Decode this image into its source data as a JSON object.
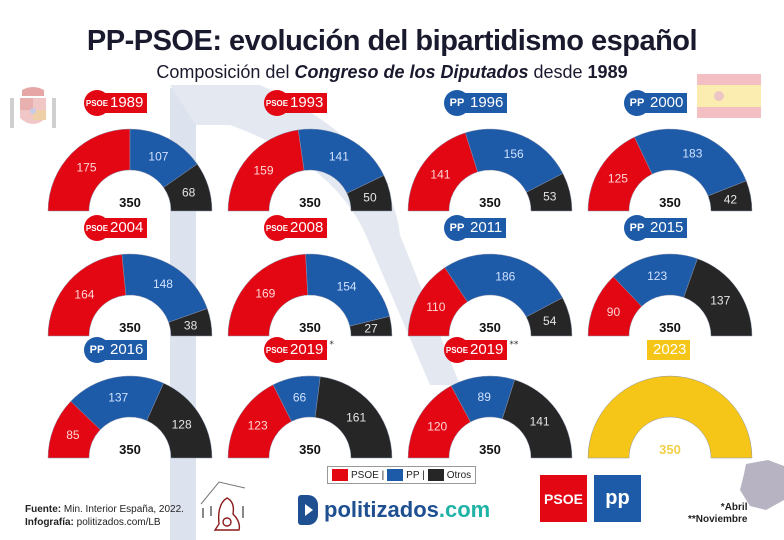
{
  "header": {
    "title": "PP-PSOE: evolución del bipartidismo español",
    "subtitle_prefix": "Composición del ",
    "subtitle_italic": "Congreso de los Diputados",
    "subtitle_mid": " desde ",
    "subtitle_year": "1989"
  },
  "colors": {
    "psoe": "#e30613",
    "pp": "#1d5aa8",
    "otros": "#262626",
    "pending": "#f5c518"
  },
  "chart_data": {
    "type": "pie",
    "title": "PP-PSOE: evolución del bipartidismo español",
    "subtitle": "Composición del Congreso de los Diputados desde 1989",
    "total_seats": 350,
    "legend": [
      "PSOE",
      "PP",
      "Otros"
    ],
    "legend_position": "bottom-center",
    "elections": [
      {
        "year": "1989",
        "winner": "PSOE",
        "mark": "",
        "psoe": 175,
        "pp": 107,
        "otros": 68,
        "total": 350
      },
      {
        "year": "1993",
        "winner": "PSOE",
        "mark": "",
        "psoe": 159,
        "pp": 141,
        "otros": 50,
        "total": 350
      },
      {
        "year": "1996",
        "winner": "PP",
        "mark": "",
        "psoe": 141,
        "pp": 156,
        "otros": 53,
        "total": 350
      },
      {
        "year": "2000",
        "winner": "PP",
        "mark": "",
        "psoe": 125,
        "pp": 183,
        "otros": 42,
        "total": 350
      },
      {
        "year": "2004",
        "winner": "PSOE",
        "mark": "",
        "psoe": 164,
        "pp": 148,
        "otros": 38,
        "total": 350
      },
      {
        "year": "2008",
        "winner": "PSOE",
        "mark": "",
        "psoe": 169,
        "pp": 154,
        "otros": 27,
        "total": 350
      },
      {
        "year": "2011",
        "winner": "PP",
        "mark": "",
        "psoe": 110,
        "pp": 186,
        "otros": 54,
        "total": 350
      },
      {
        "year": "2015",
        "winner": "PP",
        "mark": "",
        "psoe": 90,
        "pp": 123,
        "otros": 137,
        "total": 350
      },
      {
        "year": "2016",
        "winner": "PP",
        "mark": "",
        "psoe": 85,
        "pp": 137,
        "otros": 128,
        "total": 350
      },
      {
        "year": "2019",
        "winner": "PSOE",
        "mark": "*",
        "psoe": 123,
        "pp": 66,
        "otros": 161,
        "total": 350
      },
      {
        "year": "2019",
        "winner": "PSOE",
        "mark": "**",
        "psoe": 120,
        "pp": 89,
        "otros": 141,
        "total": 350
      },
      {
        "year": "2023",
        "winner": "",
        "mark": "",
        "psoe": null,
        "pp": null,
        "otros": null,
        "pending": 350,
        "total": 350
      }
    ]
  },
  "legend": {
    "psoe": "PSOE |",
    "pp": "PP |",
    "otros": "Otros"
  },
  "badges": {
    "psoe_logo": "PSOE",
    "pp_logo": "PP"
  },
  "footer": {
    "source_label": "Fuente:",
    "source_value": " Min. Interior España, 2022.",
    "infographic_label": "Infografía:",
    "infographic_value": " politizados.com/LB",
    "brand_main": "politizados",
    "brand_tld": ".com",
    "psoe_logo_text": "PSOE",
    "pp_logo_text": "PP",
    "note_1": "*Abril",
    "note_2": "**Noviembre"
  }
}
